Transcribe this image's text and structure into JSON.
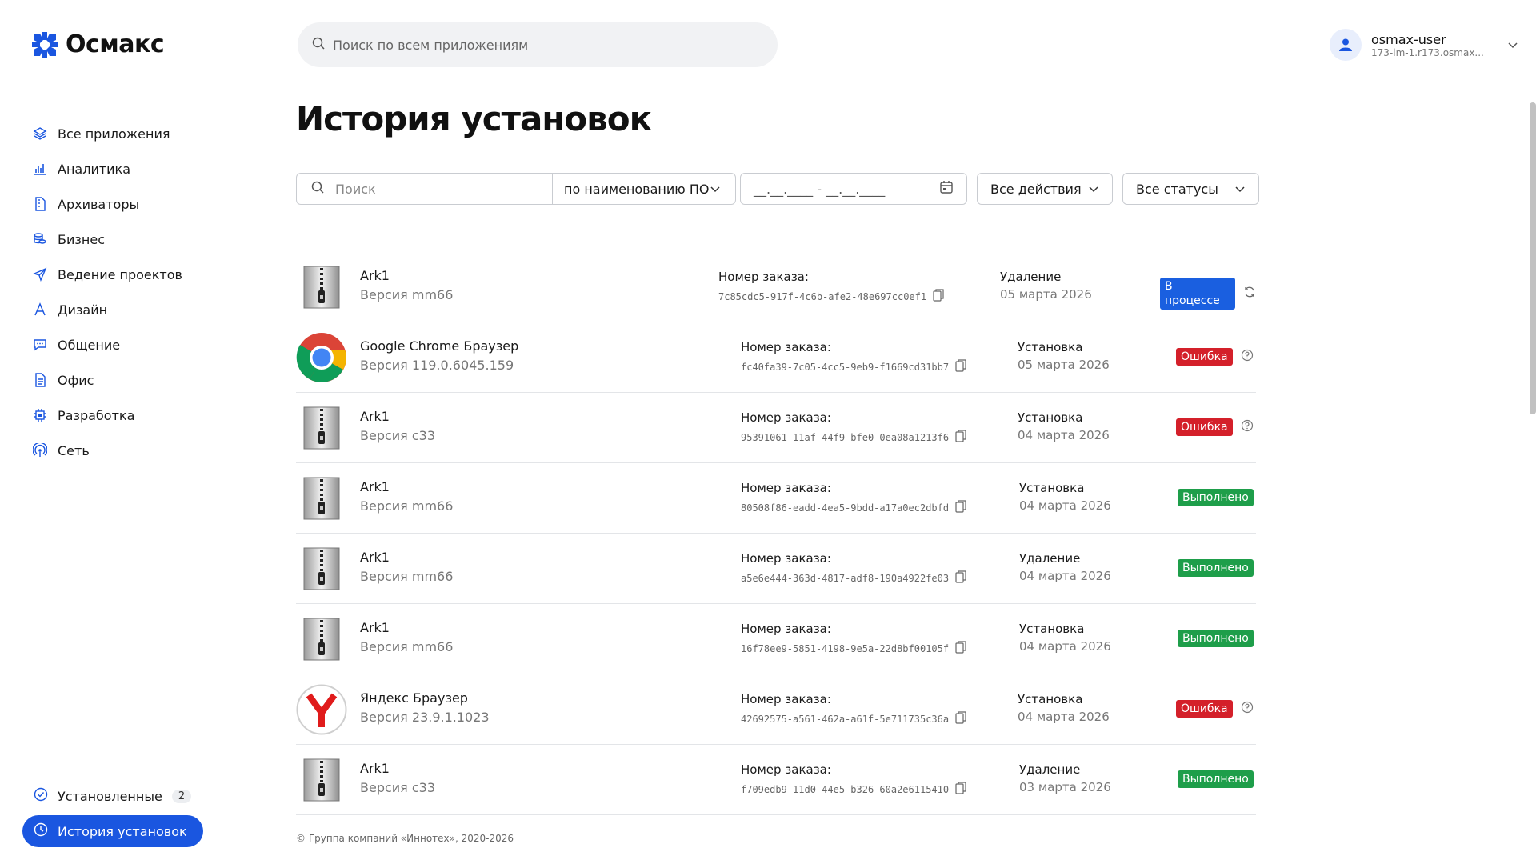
{
  "brand": {
    "name": "Осмакс"
  },
  "top_search": {
    "placeholder": "Поиск по всем приложениям"
  },
  "user": {
    "name": "osmax-user",
    "host": "173-lm-1.r173.osmax..."
  },
  "nav": {
    "items": [
      {
        "label": "Все приложения",
        "icon": "layers-icon"
      },
      {
        "label": "Аналитика",
        "icon": "chart-icon"
      },
      {
        "label": "Архиваторы",
        "icon": "archive-icon"
      },
      {
        "label": "Бизнес",
        "icon": "coins-icon"
      },
      {
        "label": "Ведение проектов",
        "icon": "send-icon"
      },
      {
        "label": "Дизайн",
        "icon": "design-icon"
      },
      {
        "label": "Общение",
        "icon": "chat-icon"
      },
      {
        "label": "Офис",
        "icon": "document-icon"
      },
      {
        "label": "Разработка",
        "icon": "chip-icon"
      },
      {
        "label": "Сеть",
        "icon": "network-icon"
      }
    ],
    "installed": {
      "label": "Установленные",
      "count": "2"
    },
    "history": {
      "label": "История установок"
    }
  },
  "page": {
    "title": "История установок"
  },
  "filters": {
    "search_placeholder": "Поиск",
    "search_by": "по наименованию ПО",
    "date_placeholder": "__.__.____ - __.__.____",
    "actions": "Все действия",
    "statuses": "Все статусы"
  },
  "order_label": "Номер заказа:",
  "rows": [
    {
      "app": "Ark1",
      "version": "Версия mm66",
      "icon": "archive-app-icon",
      "order_id": "7c85cdc5-917f-4c6b-afe2-48e697cc0ef1",
      "action": "Удаление",
      "date": "05 марта 2026",
      "status": "В процессе",
      "status_type": "progress"
    },
    {
      "app": "Google Chrome Браузер",
      "version": "Версия 119.0.6045.159",
      "icon": "chrome-icon",
      "order_id": "fc40fa39-7c05-4cc5-9eb9-f1669cd31bb7",
      "action": "Установка",
      "date": "05 марта 2026",
      "status": "Ошибка",
      "status_type": "error"
    },
    {
      "app": "Ark1",
      "version": "Версия c33",
      "icon": "archive-app-icon",
      "order_id": "95391061-11af-44f9-bfe0-0ea08a1213f6",
      "action": "Установка",
      "date": "04 марта 2026",
      "status": "Ошибка",
      "status_type": "error"
    },
    {
      "app": "Ark1",
      "version": "Версия mm66",
      "icon": "archive-app-icon",
      "order_id": "80508f86-eadd-4ea5-9bdd-a17a0ec2dbfd",
      "action": "Установка",
      "date": "04 марта 2026",
      "status": "Выполнено",
      "status_type": "done"
    },
    {
      "app": "Ark1",
      "version": "Версия mm66",
      "icon": "archive-app-icon",
      "order_id": "a5e6e444-363d-4817-adf8-190a4922fe03",
      "action": "Удаление",
      "date": "04 марта 2026",
      "status": "Выполнено",
      "status_type": "done"
    },
    {
      "app": "Ark1",
      "version": "Версия mm66",
      "icon": "archive-app-icon",
      "order_id": "16f78ee9-5851-4198-9e5a-22d8bf00105f",
      "action": "Установка",
      "date": "04 марта 2026",
      "status": "Выполнено",
      "status_type": "done"
    },
    {
      "app": "Яндекс Браузер",
      "version": "Версия 23.9.1.1023",
      "icon": "yandex-icon",
      "order_id": "42692575-a561-462a-a61f-5e711735c36a",
      "action": "Установка",
      "date": "04 марта 2026",
      "status": "Ошибка",
      "status_type": "error"
    },
    {
      "app": "Ark1",
      "version": "Версия c33",
      "icon": "archive-app-icon",
      "order_id": "f709edb9-11d0-44e5-b326-60a2e6115410",
      "action": "Удаление",
      "date": "03 марта 2026",
      "status": "Выполнено",
      "status_type": "done"
    }
  ],
  "footer": {
    "text": "© Группа компаний «Иннотех», 2020-2026"
  },
  "colors": {
    "accent": "#1a56e0",
    "error": "#d4202a",
    "success": "#1e9e4a",
    "progress": "#1a5fe0"
  }
}
